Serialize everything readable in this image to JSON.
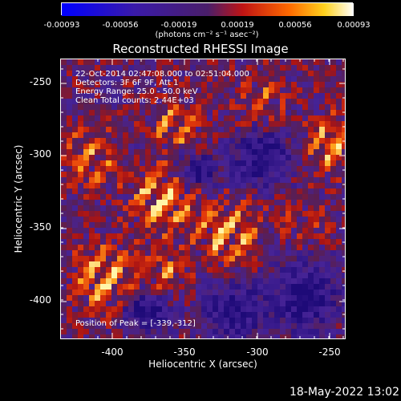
{
  "colorbar": {
    "ticks": [
      "-0.00093",
      "-0.00056",
      "-0.00019",
      "0.00019",
      "0.00056",
      "0.00093"
    ],
    "units": "(photons cm⁻² s⁻¹ asec⁻²)"
  },
  "title": "Reconstructed RHESSI Image",
  "info": {
    "line1": "22-Oct-2014 02:47:08.000 to 02:51:04.000",
    "line2": "Detectors: 3F 6F 9F, Att 1",
    "line3": "Energy Range: 25.0 - 50.0 keV",
    "line4": "Clean    Total counts: 2.44E+03",
    "peak": "Position of Peak = [-339,-312]"
  },
  "footer": {
    "date": "18-May-2022 13:02"
  },
  "chart_data": {
    "type": "heatmap",
    "title": "Reconstructed RHESSI Image",
    "xlabel": "Heliocentric X (arcsec)",
    "ylabel": "Heliocentric Y (arcsec)",
    "xlim": [
      -435,
      -244
    ],
    "ylim": [
      -424,
      -237
    ],
    "x_ticks": [
      "-400",
      "-350",
      "-300",
      "-250"
    ],
    "y_ticks": [
      "-250",
      "-300",
      "-350",
      "-400"
    ],
    "colorbar_range": [
      -0.00093,
      0.00093
    ],
    "peak": [
      -339,
      -312
    ],
    "colors": {
      "low": "#0000ff",
      "mid_low": "#5a2aa0",
      "mid": "#c81a1a",
      "high": "#ffcc22",
      "top": "#ffffff"
    }
  }
}
